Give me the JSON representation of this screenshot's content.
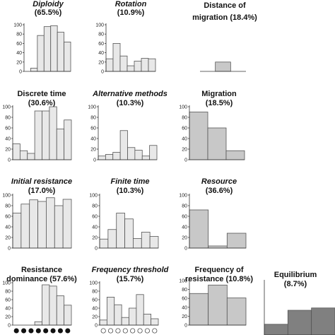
{
  "chart_data": [
    {
      "id": "diploidy",
      "type": "bar",
      "title": "Diploidy",
      "subtitle": "(65.5%)",
      "italic": true,
      "yticks": [
        0,
        20,
        40,
        60,
        80,
        100
      ],
      "values": [
        0,
        7,
        77,
        96,
        98,
        84,
        63
      ],
      "color": "#e8e8e8",
      "markers": "none"
    },
    {
      "id": "rotation",
      "type": "bar",
      "title": "Rotation",
      "subtitle": "(10.9%)",
      "italic": true,
      "yticks": [
        0,
        20,
        40,
        60,
        80,
        100
      ],
      "values": [
        27,
        60,
        33,
        12,
        22,
        28,
        27
      ],
      "color": "#e8e8e8",
      "markers": "none"
    },
    {
      "id": "distance-of-migration",
      "type": "bar",
      "title": "Distance of",
      "subtitle": "migration (18.4%)",
      "italic": false,
      "yticks": [],
      "values": [
        0,
        20,
        0
      ],
      "color": "#c8c8c8",
      "markers": "none"
    },
    {
      "id": "discrete-time",
      "type": "bar",
      "title": "Discrete time",
      "subtitle": "(30.6%)",
      "italic": false,
      "yticks": [
        0,
        20,
        40,
        60,
        80,
        100
      ],
      "values": [
        30,
        17,
        12,
        92,
        92,
        100,
        58,
        75
      ],
      "color": "#e8e8e8",
      "markers": "none"
    },
    {
      "id": "alternative-methods",
      "type": "bar",
      "title": "Alternative methods",
      "subtitle": "(10.3%)",
      "italic": true,
      "yticks": [
        0,
        20,
        40,
        60,
        80,
        100
      ],
      "values": [
        7,
        10,
        14,
        55,
        23,
        18,
        7,
        27
      ],
      "color": "#e8e8e8",
      "markers": "none"
    },
    {
      "id": "migration",
      "type": "bar",
      "title": "Migration",
      "subtitle": "(18.5%)",
      "italic": false,
      "yticks": [
        0,
        20,
        40,
        60,
        80,
        100
      ],
      "values": [
        90,
        60,
        17
      ],
      "color": "#c8c8c8",
      "markers": "none"
    },
    {
      "id": "initial-resistance",
      "type": "bar",
      "title": "Initial resistance",
      "subtitle": "(17.0%)",
      "italic": true,
      "yticks": [
        0,
        20,
        40,
        60,
        80,
        100
      ],
      "values": [
        66,
        83,
        91,
        88,
        95,
        80,
        92
      ],
      "color": "#e8e8e8",
      "markers": "none"
    },
    {
      "id": "finite-time",
      "type": "bar",
      "title": "Finite time",
      "subtitle": "(10.3%)",
      "italic": true,
      "yticks": [
        0,
        20,
        40,
        60,
        80,
        100
      ],
      "values": [
        17,
        35,
        66,
        55,
        18,
        30,
        22
      ],
      "color": "#e8e8e8",
      "markers": "none"
    },
    {
      "id": "resource",
      "type": "bar",
      "title": "Resource",
      "subtitle": "(36.6%)",
      "italic": true,
      "yticks": [
        0,
        20,
        40,
        60,
        80,
        100
      ],
      "values": [
        72,
        4,
        28
      ],
      "color": "#c8c8c8",
      "markers": "none"
    },
    {
      "id": "resistance-dominance",
      "type": "bar",
      "title": "Resistance",
      "subtitle": "dominance (57.6%)",
      "italic": false,
      "yticks": [
        0,
        20,
        40,
        60,
        80,
        100
      ],
      "values": [
        0,
        0,
        0,
        8,
        95,
        92,
        69,
        47
      ],
      "color": "#e8e8e8",
      "markers": "filled"
    },
    {
      "id": "frequency-threshold",
      "type": "bar",
      "title": "Frequency threshold",
      "subtitle": "(15.7%)",
      "italic": true,
      "yticks": [
        0,
        20,
        40,
        60,
        80,
        100
      ],
      "values": [
        12,
        66,
        48,
        18,
        40,
        72,
        26,
        15
      ],
      "color": "#e8e8e8",
      "markers": "open"
    },
    {
      "id": "frequency-of-resistance",
      "type": "bar",
      "title": "Frequency of",
      "subtitle": "resistance (10.8%)",
      "italic": false,
      "yticks": [
        0,
        20,
        40,
        60,
        80,
        100
      ],
      "values": [
        71,
        90,
        61
      ],
      "color": "#c8c8c8",
      "markers": "none"
    },
    {
      "id": "equilibrium",
      "type": "bar",
      "title": "Equilibrium",
      "subtitle": "(8.7%)",
      "italic": false,
      "yticks": [],
      "values": [
        23,
        53,
        58
      ],
      "color": "#808080",
      "markers": "none"
    }
  ]
}
